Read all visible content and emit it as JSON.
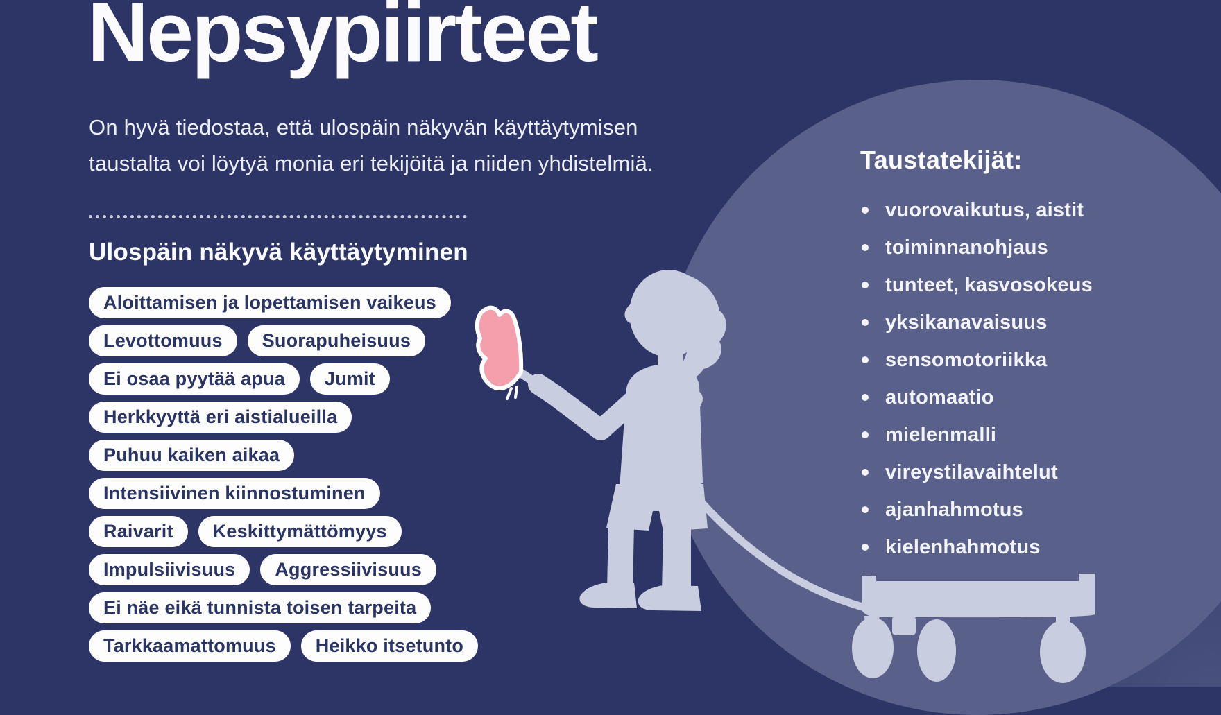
{
  "palette": {
    "background": "#2c3565",
    "circle": "#59618a",
    "silhouette": "#c9cde0",
    "butterfly_pink": "#f49fab",
    "pill_background": "#fdfdfe",
    "pill_text": "#2b3564",
    "text": "#fbfbfd"
  },
  "header": {
    "title": "Nepsypiirteet",
    "intro_line1": "On hyvä tiedostaa, että ulospäin näkyvän käyttäytymisen",
    "intro_line2": "taustalta voi löytyä monia eri tekijöitä ja niiden yhdistelmiä."
  },
  "behaviors": {
    "heading": "Ulospäin näkyvä käyttäytyminen",
    "pill_rows": [
      [
        "Aloittamisen ja lopettamisen vaikeus"
      ],
      [
        "Levottomuus",
        "Suorapuheisuus"
      ],
      [
        "Ei osaa pyytää apua",
        "Jumit"
      ],
      [
        "Herkkyyttä eri aistialueilla"
      ],
      [
        "Puhuu kaiken aikaa"
      ],
      [
        "Intensiivinen kiinnostuminen"
      ],
      [
        "Raivarit",
        "Keskittymättömyys"
      ],
      [
        "Impulsiivisuus",
        "Aggressiivisuus"
      ],
      [
        "Ei näe eikä tunnista toisen tarpeita"
      ],
      [
        "Tarkkaamattomuus",
        "Heikko itsetunto"
      ]
    ]
  },
  "factors": {
    "heading": "Taustatekijät:",
    "items": [
      "vuorovaikutus, aistit",
      "toiminnanohjaus",
      "tunteet, kasvosokeus",
      "yksikanavaisuus",
      "sensomotoriikka",
      "automaatio",
      "mielenmalli",
      "vireystilavaihtelut",
      "ajanhahmotus",
      "kielenhahmotus"
    ]
  },
  "illustration": {
    "description": "child silhouette pointing at butterfly while pulling a wagon inside spotlight circle"
  }
}
